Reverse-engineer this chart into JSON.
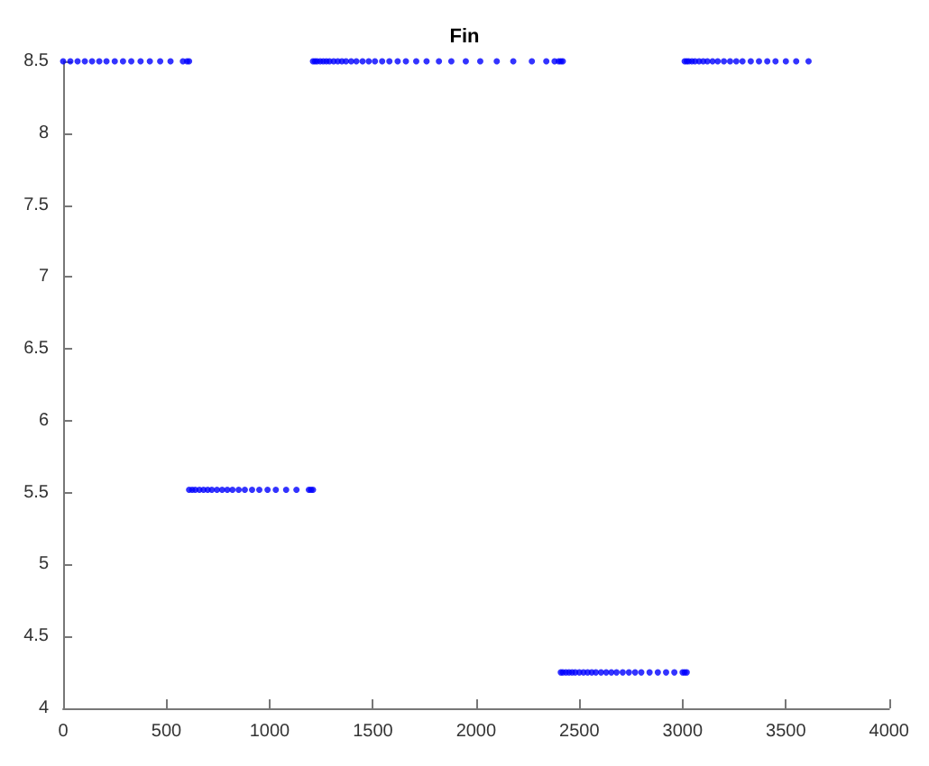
{
  "chart_data": {
    "type": "scatter",
    "title": "Fin",
    "marker": "circle",
    "grid": false,
    "x": [
      0,
      35,
      70,
      105,
      140,
      175,
      210,
      250,
      290,
      330,
      375,
      420,
      470,
      520,
      580,
      600,
      610,
      610,
      625,
      640,
      660,
      680,
      700,
      720,
      745,
      770,
      795,
      820,
      850,
      880,
      915,
      950,
      990,
      1030,
      1080,
      1130,
      1190,
      1200,
      1210,
      1210,
      1220,
      1230,
      1245,
      1260,
      1275,
      1290,
      1310,
      1330,
      1350,
      1370,
      1395,
      1420,
      1450,
      1480,
      1510,
      1545,
      1580,
      1620,
      1660,
      1710,
      1760,
      1820,
      1880,
      1950,
      2020,
      2100,
      2180,
      2270,
      2340,
      2380,
      2400,
      2410,
      2420,
      2410,
      2420,
      2435,
      2450,
      2465,
      2480,
      2500,
      2520,
      2540,
      2560,
      2580,
      2605,
      2630,
      2655,
      2680,
      2710,
      2740,
      2770,
      2800,
      2840,
      2880,
      2920,
      2960,
      3000,
      3010,
      3020,
      3010,
      3020,
      3030,
      3045,
      3060,
      3080,
      3100,
      3120,
      3145,
      3170,
      3200,
      3230,
      3260,
      3290,
      3330,
      3370,
      3410,
      3450,
      3500,
      3550,
      3610
    ],
    "series": [
      {
        "color": "#0000ff",
        "values": [
          8.5,
          8.5,
          8.5,
          8.5,
          8.5,
          8.5,
          8.5,
          8.5,
          8.5,
          8.5,
          8.5,
          8.5,
          8.5,
          8.5,
          8.5,
          8.5,
          8.5,
          5.52,
          5.52,
          5.52,
          5.52,
          5.52,
          5.52,
          5.52,
          5.52,
          5.52,
          5.52,
          5.52,
          5.52,
          5.52,
          5.52,
          5.52,
          5.52,
          5.52,
          5.52,
          5.52,
          5.52,
          5.52,
          5.52,
          8.5,
          8.5,
          8.5,
          8.5,
          8.5,
          8.5,
          8.5,
          8.5,
          8.5,
          8.5,
          8.5,
          8.5,
          8.5,
          8.5,
          8.5,
          8.5,
          8.5,
          8.5,
          8.5,
          8.5,
          8.5,
          8.5,
          8.5,
          8.5,
          8.5,
          8.5,
          8.5,
          8.5,
          8.5,
          8.5,
          8.5,
          8.5,
          8.5,
          8.5,
          4.25,
          4.25,
          4.25,
          4.25,
          4.25,
          4.25,
          4.25,
          4.25,
          4.25,
          4.25,
          4.25,
          4.25,
          4.25,
          4.25,
          4.25,
          4.25,
          4.25,
          4.25,
          4.25,
          4.25,
          4.25,
          4.25,
          4.25,
          4.25,
          4.25,
          4.25,
          8.5,
          8.5,
          8.5,
          8.5,
          8.5,
          8.5,
          8.5,
          8.5,
          8.5,
          8.5,
          8.5,
          8.5,
          8.5,
          8.5,
          8.5,
          8.5,
          8.5,
          8.5,
          8.5,
          8.5,
          8.5
        ]
      }
    ],
    "xlim": [
      0,
      4000
    ],
    "xticks": [
      0,
      500,
      1000,
      1500,
      2000,
      2500,
      3000,
      3500,
      4000
    ],
    "ylim": [
      4,
      8.5
    ],
    "yticks": [
      4,
      4.5,
      5,
      5.5,
      6,
      6.5,
      7,
      7.5,
      8,
      8.5
    ]
  }
}
